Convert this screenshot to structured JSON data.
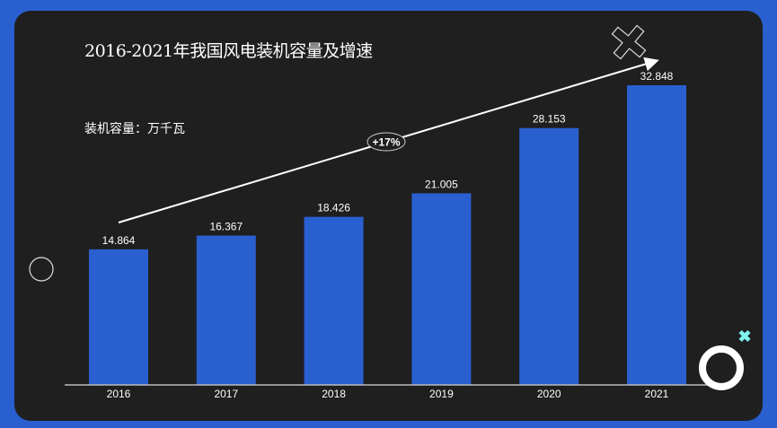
{
  "chart_data": {
    "type": "bar",
    "title": "2016-2021年我国风电装机容量及增速",
    "ylabel": "装机容量：万千瓦",
    "xlabel": "",
    "categories": [
      "2016",
      "2017",
      "2018",
      "2019",
      "2020",
      "2021"
    ],
    "values": [
      14.864,
      16.367,
      18.426,
      21.005,
      28.153,
      32.848
    ],
    "data_labels": [
      "14.864",
      "16.367",
      "18.426",
      "21.005",
      "28.153",
      "32.848"
    ],
    "ylim": [
      0,
      33
    ],
    "grid": false,
    "annotation": "+17%",
    "colors": {
      "bar": "#2a5fcf",
      "background": "#1f1f1f",
      "frame": "#2a5fcf",
      "accent": "#7ff3f0"
    }
  }
}
